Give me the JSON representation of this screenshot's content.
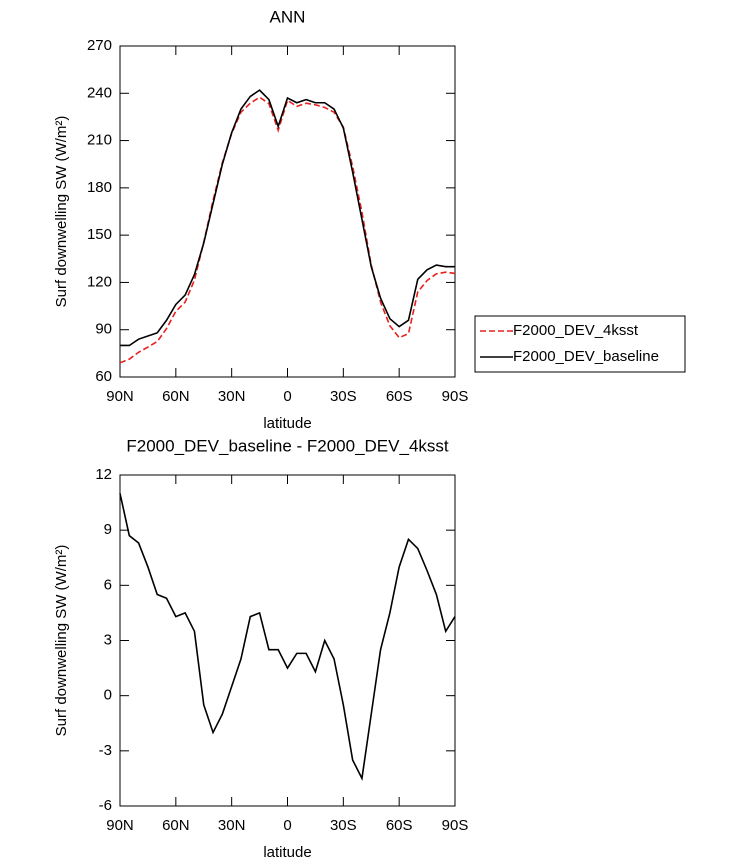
{
  "chart_data": [
    {
      "type": "line",
      "title": "ANN",
      "xlabel": "latitude",
      "ylabel": "Surf downwelling SW (W/m²)",
      "x": [
        90,
        85,
        80,
        75,
        70,
        65,
        60,
        55,
        50,
        45,
        40,
        35,
        30,
        25,
        20,
        15,
        10,
        5,
        0,
        -5,
        -10,
        -15,
        -20,
        -25,
        -30,
        -35,
        -40,
        -45,
        -50,
        -55,
        -60,
        -65,
        -70,
        -75,
        -80,
        -85,
        -90
      ],
      "xlim": [
        90,
        -90
      ],
      "xticks": [
        {
          "value": 90,
          "label": "90N"
        },
        {
          "value": 60,
          "label": "60N"
        },
        {
          "value": 30,
          "label": "30N"
        },
        0,
        {
          "value": -30,
          "label": "30S"
        },
        {
          "value": -60,
          "label": "60S"
        },
        {
          "value": -90,
          "label": "90S"
        }
      ],
      "ylim": [
        60,
        270
      ],
      "yticks": [
        60,
        90,
        120,
        150,
        180,
        210,
        240,
        270
      ],
      "legend": "right",
      "series": [
        {
          "name": "F2000_DEV_4ksst",
          "color": "#e8201c",
          "dash": true,
          "values": [
            69,
            71.3,
            75.7,
            79,
            82.5,
            90.7,
            101.7,
            107.5,
            121.5,
            145.5,
            172,
            196,
            214.5,
            228,
            233.7,
            237.5,
            233.5,
            216.5,
            235.5,
            231.7,
            233.7,
            232.7,
            231,
            228,
            218.5,
            193.5,
            164.5,
            131,
            107.5,
            92.5,
            85,
            87.5,
            114,
            121.2,
            125.5,
            126.5,
            125.7
          ]
        },
        {
          "name": "F2000_DEV_baseline",
          "color": "#000000",
          "dash": false,
          "values": [
            80,
            80,
            84,
            86,
            88,
            96,
            106,
            112,
            125,
            145,
            170,
            195,
            215,
            230,
            238,
            242,
            236,
            219,
            237,
            234,
            236,
            234,
            234,
            230,
            218,
            190,
            160,
            130,
            110,
            97,
            92,
            96,
            122,
            128,
            131,
            130,
            130
          ]
        }
      ]
    },
    {
      "type": "line",
      "title": "F2000_DEV_baseline - F2000_DEV_4ksst",
      "xlabel": "latitude",
      "ylabel": "Surf downwelling SW (W/m²)",
      "x": [
        90,
        85,
        80,
        75,
        70,
        65,
        60,
        55,
        50,
        45,
        40,
        35,
        30,
        25,
        20,
        15,
        10,
        5,
        0,
        -5,
        -10,
        -15,
        -20,
        -25,
        -30,
        -35,
        -40,
        -45,
        -50,
        -55,
        -60,
        -65,
        -70,
        -75,
        -80,
        -85,
        -90
      ],
      "xlim": [
        90,
        -90
      ],
      "xticks": [
        {
          "value": 90,
          "label": "90N"
        },
        {
          "value": 60,
          "label": "60N"
        },
        {
          "value": 30,
          "label": "30N"
        },
        0,
        {
          "value": -30,
          "label": "30S"
        },
        {
          "value": -60,
          "label": "60S"
        },
        {
          "value": -90,
          "label": "90S"
        }
      ],
      "ylim": [
        -6,
        12
      ],
      "yticks": [
        -6,
        -3,
        0,
        3,
        6,
        9,
        12
      ],
      "color": "#000000",
      "values": [
        11,
        8.7,
        8.3,
        7,
        5.5,
        5.3,
        4.3,
        4.5,
        3.5,
        -0.5,
        -2,
        -1,
        0.5,
        2,
        4.3,
        4.5,
        2.5,
        2.5,
        1.5,
        2.3,
        2.3,
        1.3,
        3,
        2,
        -0.5,
        -3.5,
        -4.5,
        -1,
        2.5,
        4.5,
        7,
        8.5,
        8,
        6.8,
        5.5,
        3.5,
        4.3
      ]
    }
  ]
}
